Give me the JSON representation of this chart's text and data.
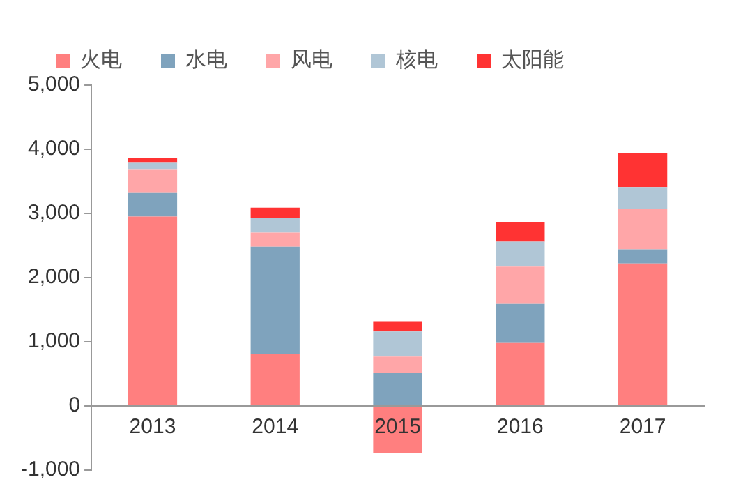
{
  "chart_data": {
    "type": "bar",
    "stacked": true,
    "categories": [
      "2013",
      "2014",
      "2015",
      "2016",
      "2017"
    ],
    "series": [
      {
        "name": "火电",
        "color": "#ff7f7f",
        "values": [
          2950,
          810,
          -730,
          980,
          2220
        ]
      },
      {
        "name": "水电",
        "color": "#7fa3bd",
        "values": [
          380,
          1670,
          510,
          610,
          220
        ]
      },
      {
        "name": "风电",
        "color": "#ffa6a8",
        "values": [
          350,
          220,
          260,
          580,
          630
        ]
      },
      {
        "name": "核电",
        "color": "#b0c6d6",
        "values": [
          120,
          230,
          390,
          390,
          340
        ]
      },
      {
        "name": "太阳能",
        "color": "#ff3333",
        "values": [
          60,
          160,
          160,
          310,
          530
        ]
      }
    ],
    "ylim": [
      -1000,
      5000
    ],
    "yticks": [
      {
        "value": -1000,
        "label": "-1,000"
      },
      {
        "value": 0,
        "label": "0"
      },
      {
        "value": 1000,
        "label": "1,000"
      },
      {
        "value": 2000,
        "label": "2,000"
      },
      {
        "value": 3000,
        "label": "3,000"
      },
      {
        "value": 4000,
        "label": "4,000"
      },
      {
        "value": 5000,
        "label": "5,000"
      }
    ],
    "grid": false,
    "legend": "top"
  }
}
